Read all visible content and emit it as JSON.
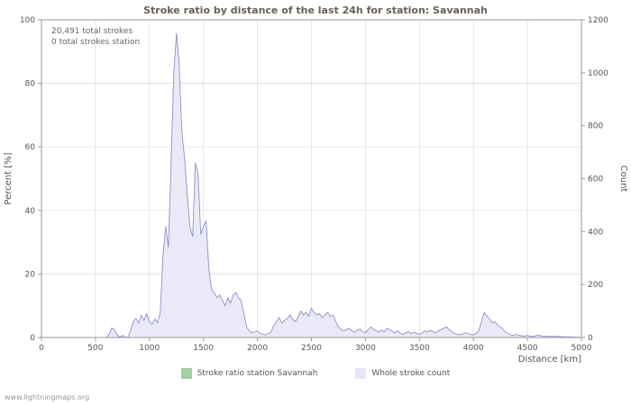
{
  "page": {
    "title": "Stroke ratio by distance of the last 24h for station: Savannah",
    "watermark": "www.lightningmaps.org"
  },
  "annotation": {
    "line1": "20,491 total strokes",
    "line2": "0 total strokes station"
  },
  "axes": {
    "left_label": "Percent   [%]",
    "right_label": "Count",
    "x_label": "Distance   [km]"
  },
  "legend": [
    {
      "label": "Stroke ratio station Savannah",
      "color": "#a3cfa3"
    },
    {
      "label": "Whole stroke count",
      "color": "#e6e6f7"
    }
  ],
  "colors": {
    "area_fill": "#e9e9f8",
    "area_line": "#9191c9",
    "station_line": "#a3cfa3",
    "grid": "#dcdcdc",
    "axis": "#999999",
    "text": "#555555"
  },
  "chart_data": {
    "type": "area",
    "title": "Stroke ratio by distance of the last 24h for station: Savannah",
    "xlabel": "Distance [km]",
    "ylabel_left": "Percent [%]",
    "ylabel_right": "Count",
    "xlim": [
      0,
      5000
    ],
    "left_ylim": [
      0,
      100
    ],
    "right_ylim": [
      0,
      1200
    ],
    "x_ticks": [
      0,
      500,
      1000,
      1500,
      2000,
      2500,
      3000,
      3500,
      4000,
      4500,
      5000
    ],
    "left_ticks": [
      0,
      20,
      40,
      60,
      80,
      100
    ],
    "right_ticks": [
      0,
      200,
      400,
      600,
      800,
      1000,
      1200
    ],
    "grid": true,
    "series": [
      {
        "name": "Stroke ratio station Savannah",
        "axis": "left",
        "constant_value": 0
      },
      {
        "name": "Whole stroke count",
        "axis": "right",
        "x_start": 0,
        "x_step": 25,
        "values": [
          0,
          0,
          0,
          0,
          0,
          0,
          0,
          0,
          0,
          0,
          0,
          0,
          0,
          0,
          0,
          0,
          0,
          0,
          0,
          0,
          0,
          0,
          0,
          0,
          0,
          12,
          36,
          30,
          10,
          2,
          8,
          2,
          0,
          24,
          60,
          72,
          55,
          84,
          65,
          90,
          60,
          50,
          70,
          55,
          95,
          310,
          420,
          340,
          660,
          1000,
          1150,
          1040,
          780,
          680,
          540,
          420,
          380,
          660,
          620,
          390,
          420,
          440,
          260,
          180,
          170,
          150,
          160,
          140,
          120,
          150,
          130,
          160,
          170,
          150,
          140,
          90,
          40,
          25,
          18,
          22,
          25,
          15,
          12,
          10,
          15,
          20,
          45,
          60,
          75,
          55,
          65,
          70,
          85,
          70,
          60,
          75,
          100,
          85,
          95,
          80,
          110,
          95,
          85,
          90,
          75,
          85,
          95,
          80,
          85,
          60,
          40,
          30,
          25,
          30,
          35,
          25,
          20,
          28,
          32,
          22,
          18,
          30,
          40,
          32,
          25,
          20,
          28,
          22,
          35,
          30,
          22,
          18,
          25,
          15,
          12,
          18,
          22,
          15,
          20,
          15,
          12,
          18,
          25,
          20,
          28,
          22,
          18,
          25,
          30,
          35,
          40,
          30,
          22,
          15,
          12,
          10,
          14,
          18,
          15,
          12,
          10,
          15,
          25,
          60,
          95,
          80,
          70,
          55,
          60,
          45,
          40,
          30,
          20,
          15,
          10,
          8,
          12,
          8,
          6,
          5,
          8,
          5,
          4,
          6,
          10,
          6,
          4,
          5,
          4,
          3,
          5,
          3,
          4,
          3,
          2,
          3,
          2,
          2,
          1,
          1,
          0
        ]
      }
    ]
  }
}
